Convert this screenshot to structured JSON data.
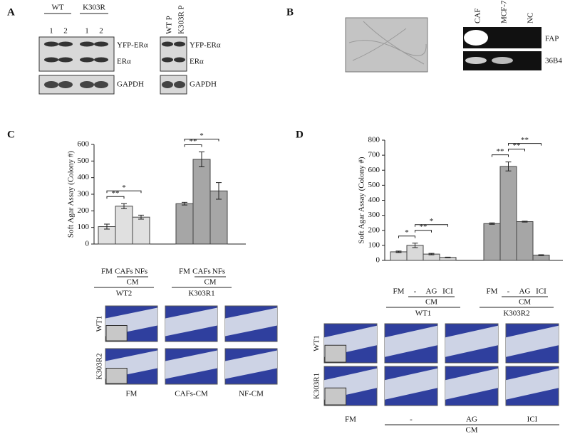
{
  "panel_a": {
    "label": "A",
    "groups": [
      "WT",
      "K303R"
    ],
    "lanes": [
      "1",
      "2",
      "1",
      "2"
    ],
    "lanes_p": [
      "WT P",
      "K303R P"
    ],
    "bands": [
      "YFP-ERα",
      "ERα",
      "GAPDH"
    ]
  },
  "panel_b": {
    "label": "B",
    "lanes": [
      "CAF",
      "MCF-7",
      "NC"
    ],
    "bands": [
      "FAP",
      "36B4"
    ]
  },
  "chart_data": [
    {
      "type": "bar",
      "panel": "C",
      "ylabel": "Soft Agar Assay (Colony #)",
      "ylim": [
        0,
        600
      ],
      "yticks": [
        0,
        100,
        200,
        300,
        400,
        500,
        600
      ],
      "groups": [
        {
          "name": "WT2",
          "color": "#e0e0e0",
          "categories": [
            "FM",
            "CAFs",
            "NFs"
          ],
          "bracket_label": "CM",
          "values": [
            105,
            228,
            162
          ],
          "errors": [
            15,
            15,
            12
          ]
        },
        {
          "name": "K303R1",
          "color": "#a6a6a6",
          "categories": [
            "FM",
            "CAFs",
            "NFs"
          ],
          "bracket_label": "CM",
          "values": [
            243,
            510,
            320
          ],
          "errors": [
            8,
            45,
            50
          ]
        }
      ],
      "annotations": [
        {
          "group": 0,
          "bars": [
            0,
            1
          ],
          "label": "**"
        },
        {
          "group": 0,
          "bars": [
            0,
            2
          ],
          "label": "*"
        },
        {
          "group": 1,
          "bars": [
            0,
            1
          ],
          "label": "**"
        },
        {
          "group": 1,
          "bars": [
            0,
            2
          ],
          "label": "*"
        }
      ]
    },
    {
      "type": "bar",
      "panel": "D",
      "ylabel": "Soft Agar Assay (Colony #)",
      "ylim": [
        0,
        800
      ],
      "yticks": [
        0,
        100,
        200,
        300,
        400,
        500,
        600,
        700,
        800
      ],
      "groups": [
        {
          "name": "WT1",
          "color": "#d9d9d9",
          "categories": [
            "FM",
            "-",
            "AG",
            "ICI"
          ],
          "bracket_label": "CM",
          "values": [
            57,
            100,
            42,
            20
          ],
          "errors": [
            5,
            15,
            5,
            2
          ]
        },
        {
          "name": "K303R2",
          "color": "#a6a6a6",
          "categories": [
            "FM",
            "-",
            "AG",
            "ICI"
          ],
          "bracket_label": "CM",
          "values": [
            245,
            625,
            258,
            35
          ],
          "errors": [
            5,
            30,
            3,
            3
          ]
        }
      ],
      "annotations": [
        {
          "group": 0,
          "bars": [
            0,
            1
          ],
          "label": "*"
        },
        {
          "group": 0,
          "bars": [
            1,
            2
          ],
          "label": "**"
        },
        {
          "group": 0,
          "bars": [
            1,
            3
          ],
          "label": "*"
        },
        {
          "group": 1,
          "bars": [
            0,
            1
          ],
          "label": "**"
        },
        {
          "group": 1,
          "bars": [
            1,
            2
          ],
          "label": "**"
        },
        {
          "group": 1,
          "bars": [
            1,
            3
          ],
          "label": "**"
        }
      ]
    }
  ],
  "images_c": {
    "rows": [
      "WT1",
      "K303R2"
    ],
    "columns": [
      "FM",
      "CAFs-CM",
      "NF-CM"
    ]
  },
  "images_d": {
    "rows": [
      "WT1",
      "K303R1"
    ],
    "columns": [
      "FM",
      "-",
      "AG",
      "ICI"
    ],
    "group_label": "CM"
  }
}
